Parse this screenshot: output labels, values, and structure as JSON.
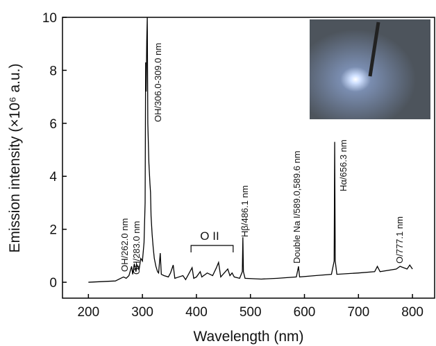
{
  "chart_data": {
    "type": "line",
    "xlabel": "Wavelength (nm)",
    "ylabel": "Emission intensity (×10⁶ a.u.)",
    "xlim": [
      152,
      841
    ],
    "ylim": [
      -0.6,
      10
    ],
    "xticks": [
      200,
      300,
      400,
      500,
      600,
      700,
      800
    ],
    "yticks": [
      0,
      2,
      4,
      6,
      8,
      10
    ],
    "color": "#000000",
    "annotations": [
      "OH/262.0 nm",
      "OH/283.0 nm",
      "OH/306.0-309.0 nm",
      "O II",
      "Hβ/486.1 nm",
      "Double Na I/589.0,589.6 nm",
      "Hα/656.3 nm",
      "O/777.1 nm"
    ],
    "x": [
      200,
      250,
      260,
      265,
      270,
      275,
      280,
      282,
      285,
      288,
      290,
      294,
      297,
      300,
      303,
      305,
      306,
      307,
      308,
      309,
      310,
      312,
      314,
      315,
      316,
      318,
      320,
      322,
      325,
      328,
      330,
      333,
      335,
      340,
      348,
      352,
      357,
      360,
      375,
      380,
      392,
      395,
      400,
      407,
      410,
      420,
      430,
      437,
      441,
      445,
      458,
      462,
      466,
      470,
      480,
      485,
      486,
      487,
      490,
      520,
      550,
      585,
      589,
      591,
      620,
      650,
      655,
      656,
      657,
      660,
      700,
      730,
      735,
      740,
      770,
      777,
      790,
      795,
      800
    ],
    "values": [
      0,
      0.05,
      0.15,
      0.2,
      0.15,
      0.25,
      0.6,
      0.3,
      0.7,
      0.4,
      0.65,
      0.5,
      0.9,
      0.8,
      1.5,
      3,
      8.3,
      7.2,
      9.1,
      10,
      6,
      4.5,
      3.7,
      3.4,
      2.5,
      1.8,
      1.3,
      0.9,
      0.6,
      0.4,
      0.35,
      1.1,
      0.3,
      0.25,
      0.2,
      0.35,
      0.65,
      0.15,
      0.25,
      0.1,
      0.55,
      0.15,
      0.2,
      0.4,
      0.2,
      0.35,
      0.25,
      0.55,
      0.75,
      0.2,
      0.5,
      0.25,
      0.35,
      0.2,
      0.15,
      0.4,
      1.7,
      0.4,
      0.15,
      0.12,
      0.15,
      0.2,
      0.6,
      0.2,
      0.25,
      0.3,
      0.8,
      5.3,
      0.8,
      0.3,
      0.35,
      0.4,
      0.6,
      0.4,
      0.5,
      0.6,
      0.5,
      0.65,
      0.5
    ]
  }
}
